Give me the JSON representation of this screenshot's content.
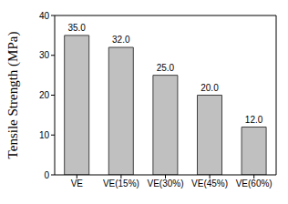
{
  "chart_data": {
    "type": "bar",
    "y_label": "Tensile Strength (MPa)",
    "categories": [
      "VE",
      "VE(15%)",
      "VE(30%)",
      "VE(45%)",
      "VE(60%)"
    ],
    "values": [
      35,
      32,
      25,
      20,
      12
    ],
    "value_labels": [
      "35.0",
      "32.0",
      "25.0",
      "20.0",
      "12.0"
    ],
    "data_labels": true,
    "color": "#c0c0c0",
    "ylim": [
      0,
      40
    ],
    "yticks": [
      0,
      10,
      20,
      30,
      40
    ],
    "grid": false
  }
}
